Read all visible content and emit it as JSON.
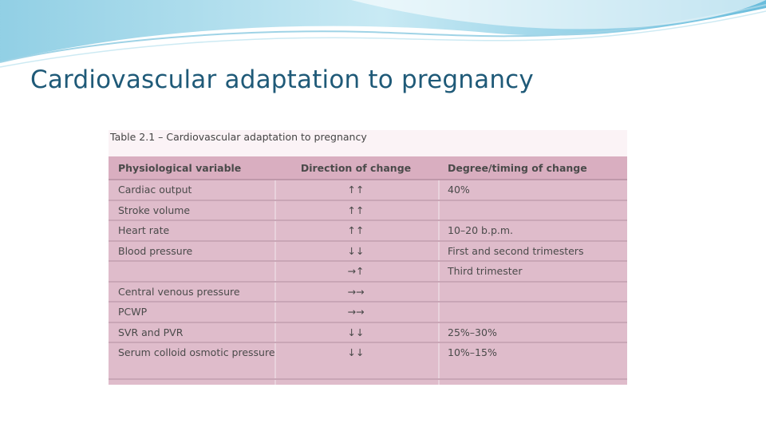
{
  "title": "Cardiovascular adaptation to pregnancy",
  "table": {
    "caption": "Table 2.1 – Cardiovascular adaptation to pregnancy",
    "header": [
      "Physiological variable",
      "Direction of change",
      "Degree/timing of change"
    ],
    "rows": [
      [
        "Cardiac output",
        "↑↑",
        "40%"
      ],
      [
        "Stroke volume",
        "↑↑",
        null
      ],
      [
        "Heart rate",
        "↑↑",
        "10–20 b.p.m."
      ],
      [
        "Blood pressure",
        "↓↓",
        "First and second trimesters"
      ],
      [
        null,
        "→↑",
        "Third trimester"
      ],
      [
        "Central venous pressure",
        "→→",
        null
      ],
      [
        "PCWP",
        "→→",
        null
      ],
      [
        "SVR and PVR",
        "↓↓",
        "25%–30%"
      ],
      [
        "Serum colloid osmotic pressure",
        "↓↓",
        "10%–15%"
      ]
    ]
  }
}
